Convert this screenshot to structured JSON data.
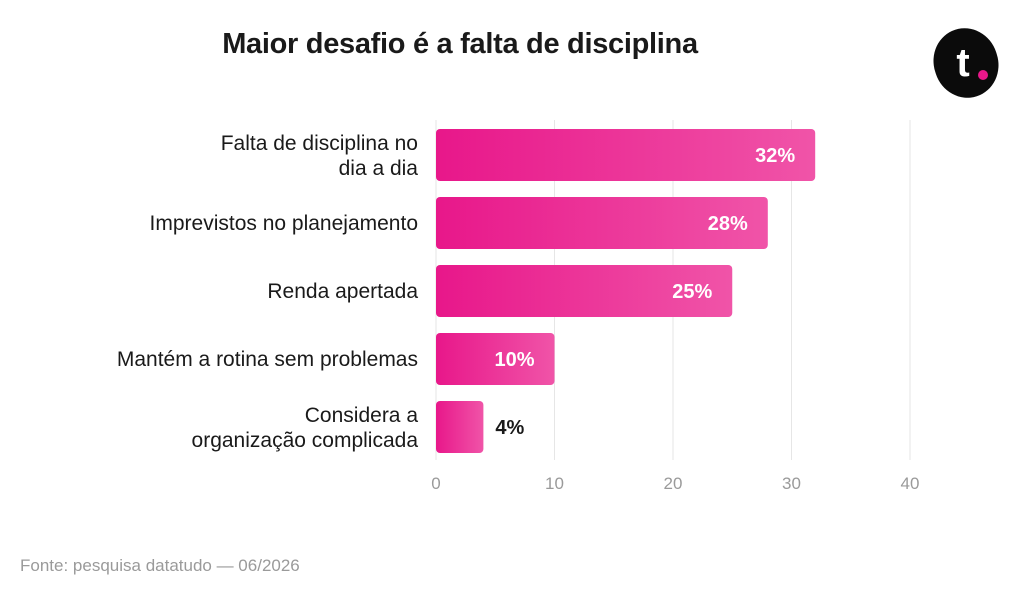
{
  "colors": {
    "bar_start": "#e8178a",
    "bar_end": "#f054a8",
    "grid": "#e6e6e6",
    "tick_label": "#9a9a9a",
    "category_label": "#1a1a1a",
    "logo_bg": "#0b0b0b",
    "logo_dot": "#e8178a"
  },
  "logo": {
    "letter": "t",
    "icon": "brand-logo-icon"
  },
  "chart_data": {
    "type": "bar",
    "orientation": "horizontal",
    "title": "Maior desafio é a falta de disciplina",
    "categories": [
      "Falta de disciplina no dia a dia",
      "Imprevistos no planejamento",
      "Renda apertada",
      "Mantém a rotina sem problemas",
      "Considera a organização complicada"
    ],
    "values": [
      32,
      28,
      25,
      10,
      4
    ],
    "data_labels": [
      "32%",
      "28%",
      "25%",
      "10%",
      "4%"
    ],
    "xlim": [
      0,
      40
    ],
    "xticks": [
      0,
      10,
      20,
      30,
      40
    ],
    "xlabel": "",
    "ylabel": "",
    "grid": "vertical"
  },
  "source": "Fonte: pesquisa datatudo — 06/2026"
}
